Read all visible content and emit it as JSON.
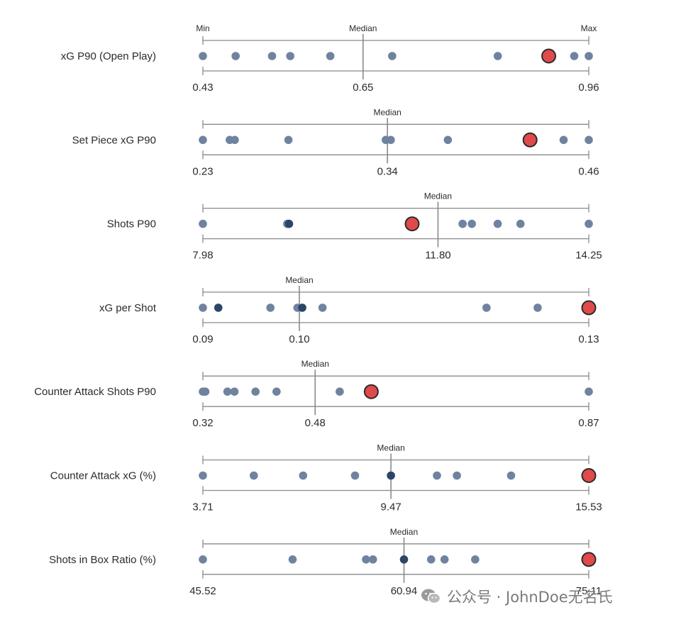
{
  "watermark": "公众号 · JohnDoe无名氏",
  "scale_labels": {
    "min": "Min",
    "median": "Median",
    "max": "Max"
  },
  "colors": {
    "dot": "#6f83a0",
    "dot_dark": "#2d4566",
    "highlight": "#e04a4a",
    "highlight_stroke": "#2b2b2b",
    "axis": "#8a8a8a",
    "text": "#2b2b2b"
  },
  "chart_data": {
    "type": "scatter",
    "highlighted_series": "highlight",
    "rows": [
      {
        "label": "xG P90 (Open Play)",
        "min": 0.43,
        "median": 0.65,
        "max": 0.96,
        "ticks": [
          "0.43",
          "0.65",
          "0.96"
        ],
        "points": [
          0.43,
          0.475,
          0.525,
          0.55,
          0.605,
          0.69,
          0.835,
          0.94,
          0.96
        ],
        "dark_points": [],
        "highlight": 0.905,
        "show_min_max": true
      },
      {
        "label": "Set Piece xG P90",
        "min": 0.23,
        "median": 0.34,
        "max": 0.46,
        "ticks": [
          "0.23",
          "0.34",
          "0.46"
        ],
        "points": [
          0.23,
          0.246,
          0.249,
          0.281,
          0.339,
          0.342,
          0.376,
          0.445,
          0.46
        ],
        "dark_points": [],
        "highlight": 0.425,
        "show_min_max": false
      },
      {
        "label": "Shots P90",
        "min": 7.98,
        "median": 11.8,
        "max": 14.25,
        "ticks": [
          "7.98",
          "11.80",
          "14.25"
        ],
        "points": [
          7.98,
          9.35,
          12.2,
          12.35,
          12.77,
          13.14,
          14.25
        ],
        "dark_points": [
          9.38
        ],
        "highlight": 11.38,
        "show_min_max": false
      },
      {
        "label": "xG per Shot",
        "min": 0.09,
        "median": 0.1,
        "max": 0.13,
        "ticks": [
          "0.09",
          "0.10",
          "0.13"
        ],
        "points": [
          0.09,
          0.097,
          0.0998,
          0.1024,
          0.1194,
          0.1247
        ],
        "dark_points": [
          0.0916,
          0.1003
        ],
        "highlight": 0.13,
        "show_min_max": false
      },
      {
        "label": "Counter Attack Shots P90",
        "min": 0.32,
        "median": 0.48,
        "max": 0.87,
        "ticks": [
          "0.32",
          "0.48",
          "0.87"
        ],
        "points": [
          0.32,
          0.3235,
          0.355,
          0.365,
          0.395,
          0.425,
          0.515,
          0.87
        ],
        "dark_points": [],
        "highlight": 0.56,
        "show_min_max": false
      },
      {
        "label": "Counter Attack xG (%)",
        "min": 3.71,
        "median": 9.47,
        "max": 15.53,
        "ticks": [
          "3.71",
          "9.47",
          "15.53"
        ],
        "points": [
          3.71,
          5.27,
          6.78,
          8.37,
          10.88,
          11.49,
          13.15
        ],
        "dark_points": [
          9.47
        ],
        "highlight": 15.53,
        "show_min_max": false
      },
      {
        "label": "Shots in Box Ratio (%)",
        "min": 45.52,
        "median": 60.94,
        "max": 75.11,
        "ticks": [
          "45.52",
          "60.94",
          "75.11"
        ],
        "points": [
          45.52,
          52.4,
          58.03,
          58.56,
          63.02,
          64.05,
          66.4
        ],
        "dark_points": [
          60.94
        ],
        "highlight": 75.11,
        "show_min_max": false
      }
    ]
  }
}
